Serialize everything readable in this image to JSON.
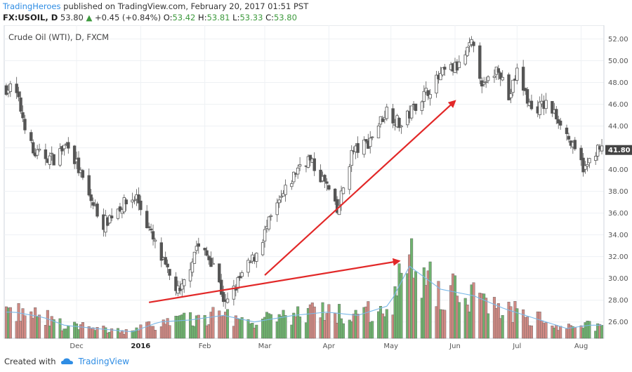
{
  "header": {
    "brand": "TradingHeroes",
    "published": "published on TradingView.com, February 20, 2017 01:51 PST",
    "symbol": "FX:USOIL, D",
    "last": "53.80",
    "change": "+0.45 (+0.84%)",
    "open_label": "O:",
    "open": "53.42",
    "high_label": "H:",
    "high": "53.81",
    "low_label": "L:",
    "low": "53.33",
    "close_label": "C:",
    "close": "53.80"
  },
  "footer": {
    "created_with": "Created with",
    "tradingview": "TradingView"
  },
  "colors": {
    "up_volume": "#6fb36f",
    "down_volume": "#d08a84",
    "volume_ma": "#7ab8e8",
    "arrow": "#e22828",
    "candle": "#555555",
    "last_price_bg": "#444444",
    "brand": "#2f8de4"
  },
  "chart_data": {
    "type": "candlestick",
    "title": "Crude Oil (WTI), D, FXCM",
    "ylim": [
      24.5,
      53
    ],
    "ytick_labels": [
      "52.00",
      "50.00",
      "48.00",
      "46.00",
      "44.00",
      "42.00",
      "40.00",
      "38.00",
      "36.00",
      "34.00",
      "32.00",
      "30.00",
      "28.00",
      "26.00"
    ],
    "last_price_label": "41.80",
    "x_tick_labels": [
      "Dec",
      "2016",
      "Feb",
      "Mar",
      "Apr",
      "May",
      "Jun",
      "Jul",
      "Aug"
    ],
    "bold_x_tick": "2016",
    "close_path_approx": [
      [
        "2015-11-01",
        47.5
      ],
      [
        "2015-11-10",
        41.5
      ],
      [
        "2015-11-20",
        41.0
      ],
      [
        "2015-11-27",
        42.5
      ],
      [
        "2015-12-07",
        37.5
      ],
      [
        "2015-12-14",
        35.0
      ],
      [
        "2015-12-21",
        36.5
      ],
      [
        "2015-12-30",
        37.5
      ],
      [
        "2016-01-07",
        33.5
      ],
      [
        "2016-01-14",
        30.5
      ],
      [
        "2016-01-20",
        28.5
      ],
      [
        "2016-01-28",
        33.0
      ],
      [
        "2016-02-05",
        31.5
      ],
      [
        "2016-02-11",
        27.5
      ],
      [
        "2016-02-18",
        30.0
      ],
      [
        "2016-02-25",
        32.0
      ],
      [
        "2016-03-04",
        35.5
      ],
      [
        "2016-03-11",
        38.0
      ],
      [
        "2016-03-18",
        40.5
      ],
      [
        "2016-03-22",
        41.0
      ],
      [
        "2016-03-31",
        38.5
      ],
      [
        "2016-04-05",
        36.0
      ],
      [
        "2016-04-12",
        41.5
      ],
      [
        "2016-04-20",
        42.5
      ],
      [
        "2016-04-29",
        45.5
      ],
      [
        "2016-05-06",
        44.0
      ],
      [
        "2016-05-13",
        46.0
      ],
      [
        "2016-05-20",
        47.5
      ],
      [
        "2016-05-27",
        49.0
      ],
      [
        "2016-06-03",
        49.5
      ],
      [
        "2016-06-09",
        51.5
      ],
      [
        "2016-06-15",
        47.5
      ],
      [
        "2016-06-22",
        49.5
      ],
      [
        "2016-06-27",
        46.5
      ],
      [
        "2016-07-01",
        49.0
      ],
      [
        "2016-07-08",
        45.5
      ],
      [
        "2016-07-15",
        46.0
      ],
      [
        "2016-07-22",
        44.5
      ],
      [
        "2016-07-29",
        41.5
      ],
      [
        "2016-08-03",
        40.0
      ],
      [
        "2016-08-08",
        41.8
      ]
    ],
    "volume_scale": [
      0,
      12
    ],
    "volume_approx": [
      {
        "d": "2015-11-01",
        "v": 4.0,
        "up": false
      },
      {
        "d": "2015-11-15",
        "v": 3.2,
        "up": false
      },
      {
        "d": "2015-11-25",
        "v": 2.0,
        "up": true
      },
      {
        "d": "2015-12-10",
        "v": 1.5,
        "up": false
      },
      {
        "d": "2015-12-28",
        "v": 1.0,
        "up": false
      },
      {
        "d": "2016-01-10",
        "v": 2.5,
        "up": false
      },
      {
        "d": "2016-01-25",
        "v": 2.8,
        "up": true
      },
      {
        "d": "2016-02-10",
        "v": 3.5,
        "up": false
      },
      {
        "d": "2016-02-25",
        "v": 2.5,
        "up": true
      },
      {
        "d": "2016-03-15",
        "v": 3.5,
        "up": true
      },
      {
        "d": "2016-03-31",
        "v": 4.0,
        "up": false
      },
      {
        "d": "2016-04-15",
        "v": 3.5,
        "up": true
      },
      {
        "d": "2016-04-30",
        "v": 5.0,
        "up": true
      },
      {
        "d": "2016-05-10",
        "v": 11.0,
        "up": true
      },
      {
        "d": "2016-05-25",
        "v": 7.5,
        "up": false
      },
      {
        "d": "2016-06-10",
        "v": 6.5,
        "up": false
      },
      {
        "d": "2016-06-25",
        "v": 4.5,
        "up": false
      },
      {
        "d": "2016-07-10",
        "v": 3.0,
        "up": false
      },
      {
        "d": "2016-07-25",
        "v": 1.5,
        "up": false
      },
      {
        "d": "2016-08-05",
        "v": 2.0,
        "up": true
      }
    ],
    "annotations": [
      {
        "type": "arrow",
        "from": [
          "2016-01-05",
          27.8
        ],
        "to": [
          "2016-05-05",
          31.6
        ]
      },
      {
        "type": "arrow",
        "from": [
          "2016-03-01",
          30.3
        ],
        "to": [
          "2016-06-01",
          46.3
        ]
      }
    ]
  }
}
